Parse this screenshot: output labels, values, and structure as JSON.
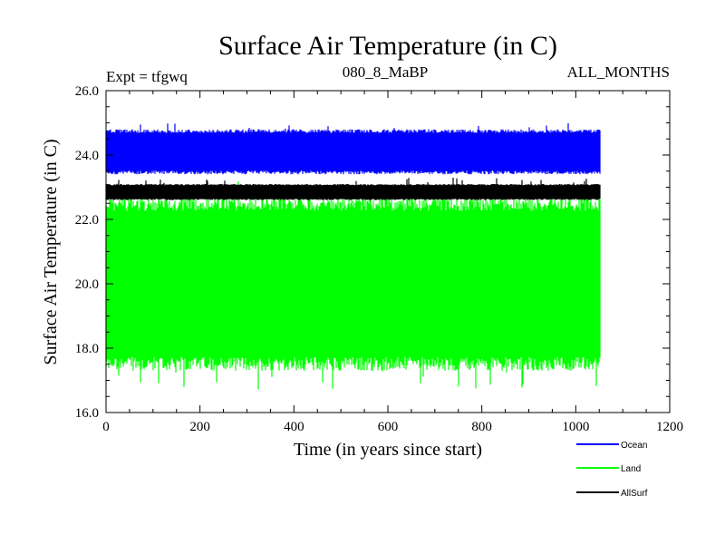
{
  "chart_data": {
    "type": "line",
    "title": "Surface Air Temperature (in C)",
    "subtitle_left": "Expt = tfgwq",
    "subtitle_center": "080_8_MaBP",
    "subtitle_right": "ALL_MONTHS",
    "xlabel": "Time (in years since start)",
    "ylabel": "Surface Air Temperature (in C)",
    "xlim": [
      0,
      1200
    ],
    "ylim": [
      16.0,
      26.0
    ],
    "x_ticks": [
      0,
      200,
      400,
      600,
      800,
      1000,
      1200
    ],
    "x_tick_labels": [
      "0",
      "200",
      "400",
      "600",
      "800",
      "1000",
      "1200"
    ],
    "y_ticks": [
      16.0,
      18.0,
      20.0,
      22.0,
      24.0,
      26.0
    ],
    "y_tick_labels": [
      "16.0",
      "18.0",
      "20.0",
      "22.0",
      "24.0",
      "26.0"
    ],
    "series": [
      {
        "name": "Ocean",
        "color": "#0000ff",
        "x_range": [
          0,
          1052
        ],
        "monthly_min": 23.4,
        "monthly_max": 24.8,
        "extreme_max": 25.0
      },
      {
        "name": "Land",
        "color": "#00ff00",
        "x_range": [
          0,
          1052
        ],
        "monthly_min": 17.3,
        "monthly_max": 22.7,
        "extreme_min": 16.7,
        "extreme_max": 23.2
      },
      {
        "name": "AllSurf",
        "color": "#000000",
        "x_range": [
          0,
          1052
        ],
        "monthly_min": 22.6,
        "monthly_max": 23.1,
        "extreme_max": 23.3
      }
    ],
    "legend_position": "bottom-right"
  }
}
